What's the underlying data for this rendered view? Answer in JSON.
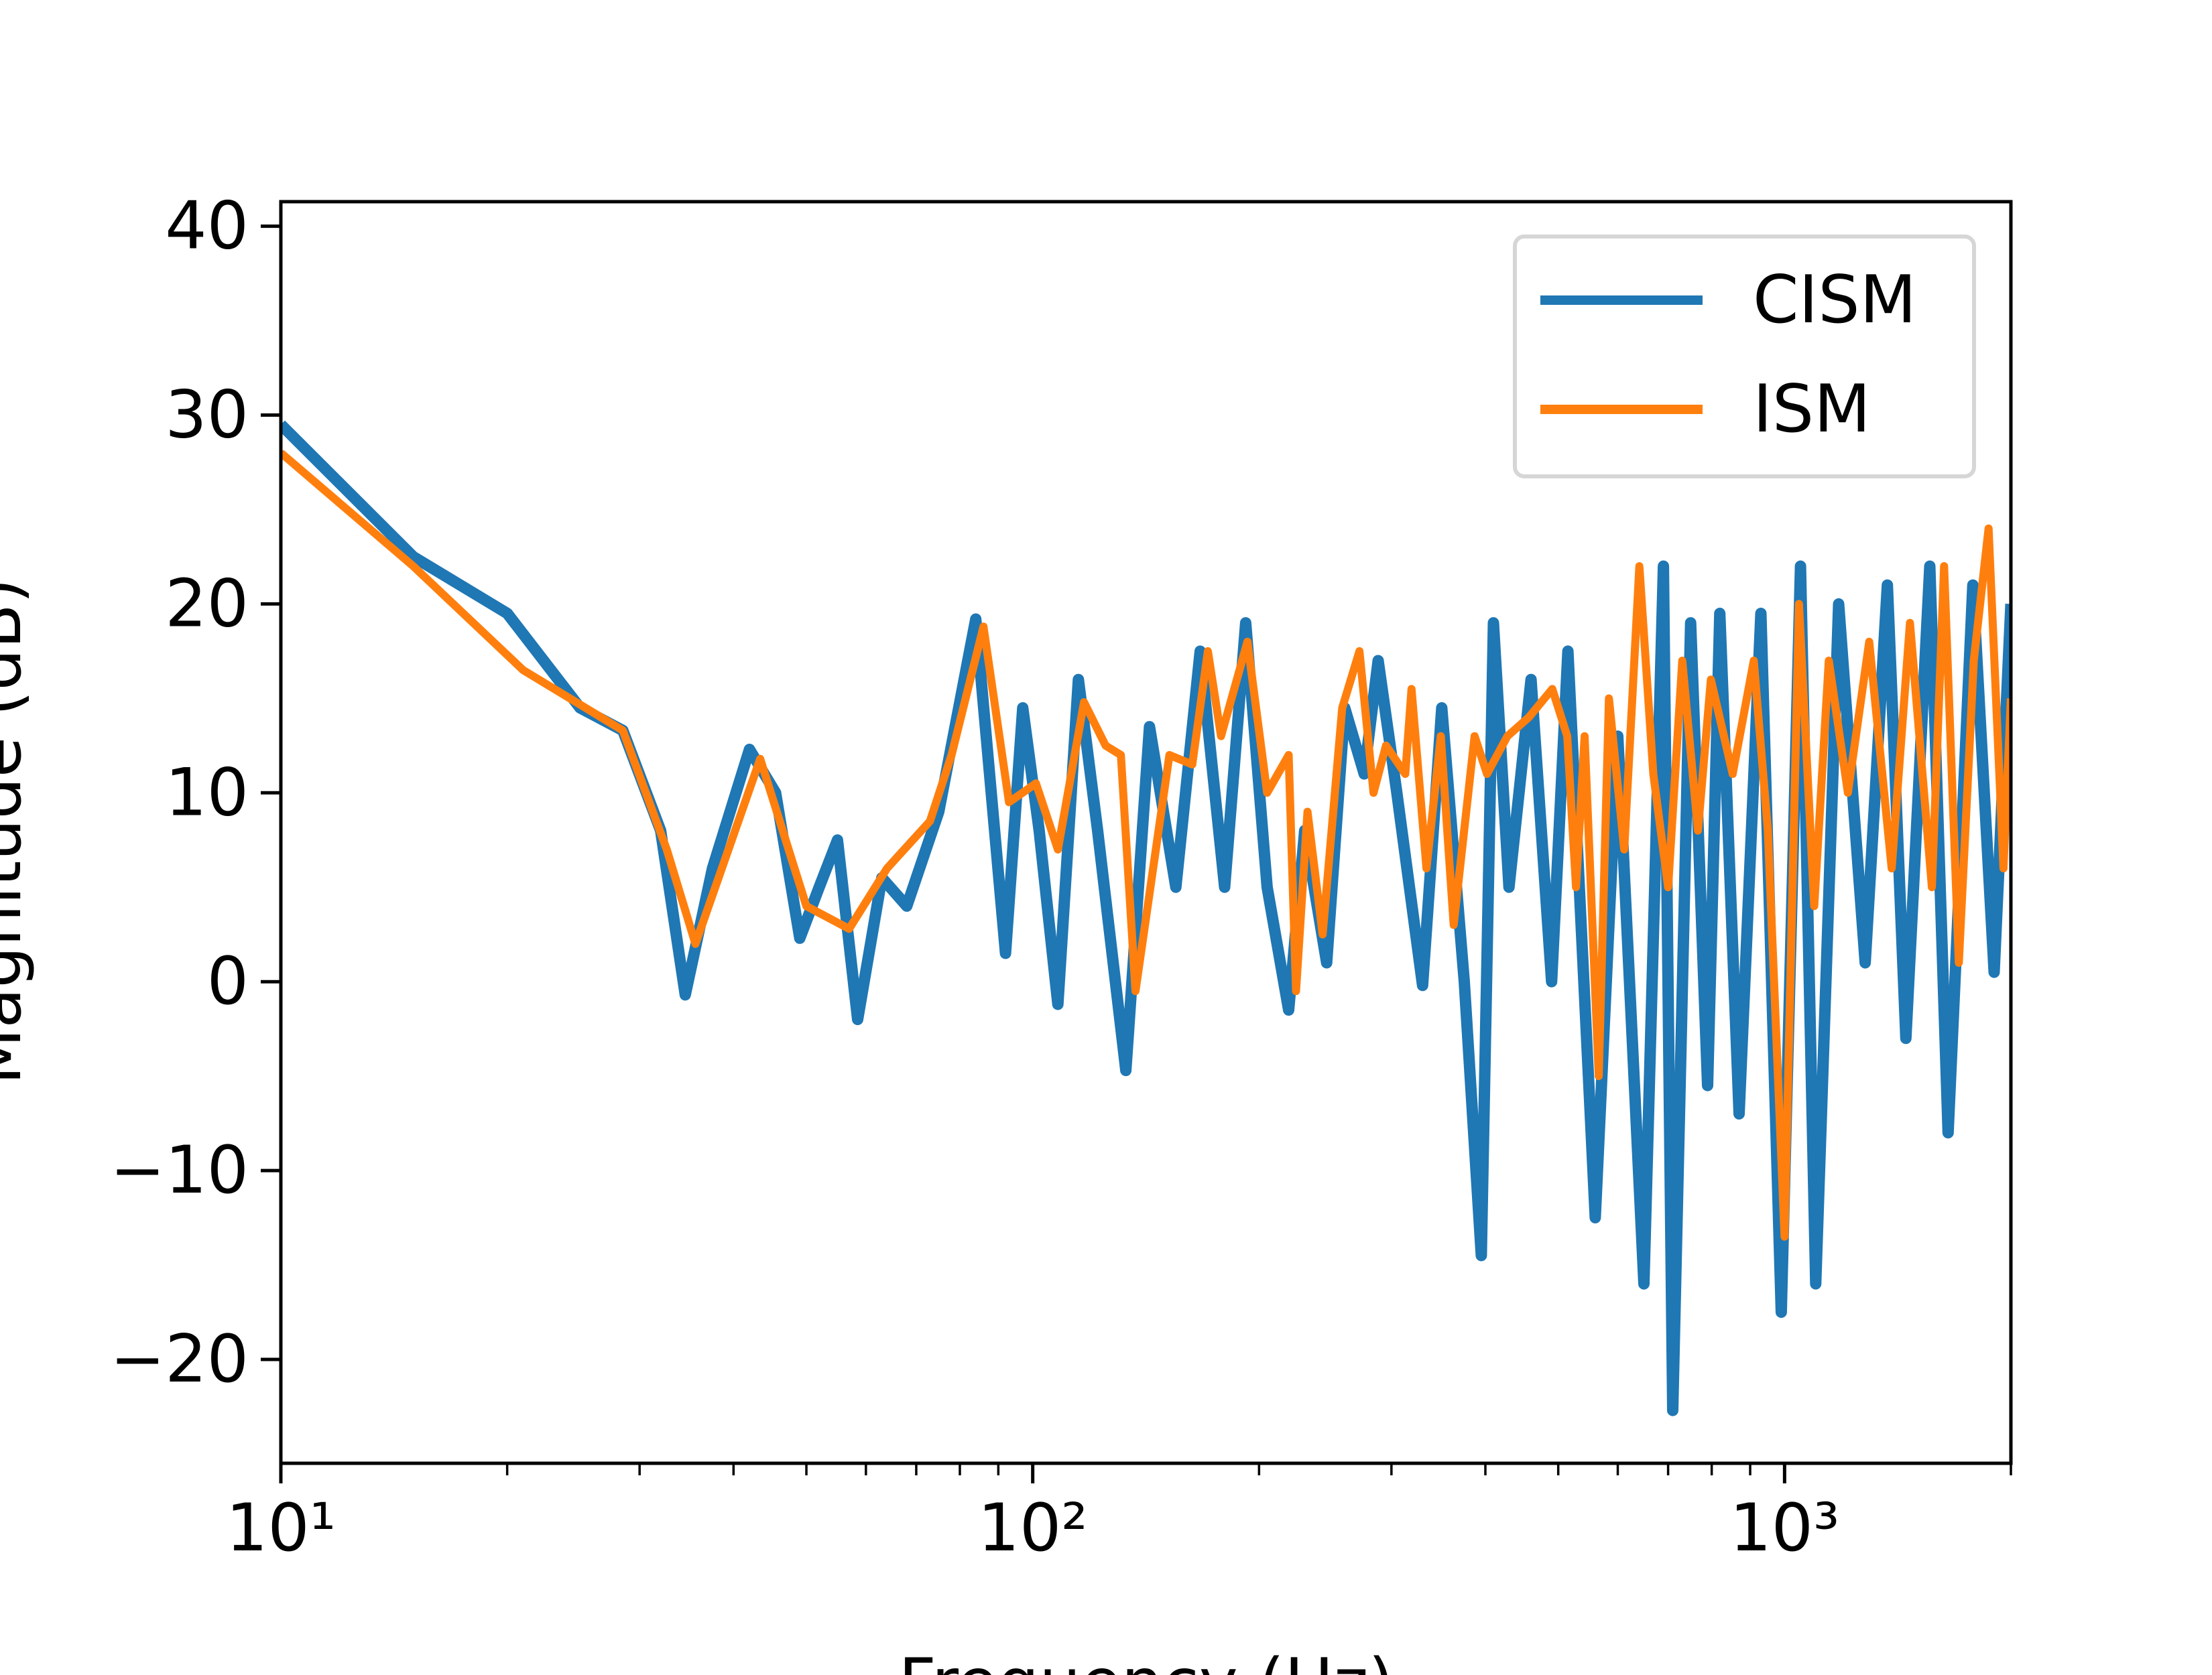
{
  "chart_data": {
    "type": "line",
    "xlabel": "Frequency (Hz)",
    "ylabel": "Magnitude (dB)",
    "xscale": "log",
    "xlim": [
      10,
      2000
    ],
    "ylim": [
      -25.5,
      41.3
    ],
    "xticks": [
      {
        "value": 10,
        "label": "10¹"
      },
      {
        "value": 100,
        "label": "10²"
      },
      {
        "value": 1000,
        "label": "10³"
      }
    ],
    "xminorticks": [
      20,
      30,
      40,
      50,
      60,
      70,
      80,
      90,
      200,
      300,
      400,
      500,
      600,
      700,
      800,
      900,
      2000
    ],
    "yticks": [
      {
        "value": -20,
        "label": "−20"
      },
      {
        "value": -10,
        "label": "−10"
      },
      0,
      10,
      20,
      30,
      40
    ],
    "legend": "upper right",
    "series": [
      {
        "name": "CISM",
        "color": "#1f77b4",
        "x": [
          10,
          15,
          20,
          25,
          28.5,
          32,
          34.5,
          37.5,
          42,
          45.5,
          49,
          52,
          55,
          58.5,
          63,
          68,
          75,
          84,
          92,
          97,
          102,
          108,
          115,
          122,
          133,
          143,
          155,
          167,
          180,
          192,
          205,
          219,
          230,
          246,
          260,
          276,
          288,
          305,
          330,
          350,
          375,
          395,
          410,
          430,
          460,
          490,
          515,
          560,
          600,
          650,
          690,
          710,
          750,
          790,
          820,
          870,
          930,
          990,
          1050,
          1100,
          1180,
          1280,
          1370,
          1450,
          1560,
          1650,
          1780,
          1900,
          2000
        ],
        "values": [
          29.5,
          22.5,
          19.5,
          14.5,
          13.3,
          8,
          -0.7,
          6,
          12.3,
          10,
          2.3,
          5,
          7.5,
          -2,
          5.5,
          4,
          9,
          19.2,
          1.5,
          14.5,
          8,
          -1.2,
          16,
          8,
          -4.7,
          13.5,
          5,
          17.5,
          5,
          19,
          5,
          -1.5,
          8,
          1,
          14.5,
          11,
          17,
          10,
          -0.2,
          14.5,
          0,
          -14.5,
          19,
          5,
          16,
          0,
          17.5,
          -12.5,
          13,
          -16,
          22,
          -22.7,
          19,
          -5.5,
          19.5,
          -7,
          19.5,
          -17.5,
          22,
          -16,
          20,
          1,
          21,
          -3,
          22,
          -8,
          21,
          0.5,
          20
        ]
      },
      {
        "name": "ISM",
        "color": "#ff7f0e",
        "x": [
          10,
          15,
          21,
          28.5,
          32.6,
          35.6,
          43.4,
          50,
          57,
          64,
          73,
          78,
          86,
          93,
          101,
          108,
          117,
          125,
          131,
          137,
          152,
          163,
          171,
          178,
          193,
          205,
          219,
          224,
          232,
          243,
          258,
          272,
          284,
          295,
          313,
          319,
          334,
          349,
          363,
          387,
          402,
          428,
          457,
          491,
          514,
          528,
          542,
          566,
          584,
          612,
          641,
          669,
          700,
          731,
          767,
          798,
          853,
          910,
          950,
          1000,
          1045,
          1095,
          1145,
          1214,
          1296,
          1388,
          1468,
          1570,
          1630,
          1705,
          1785,
          1868,
          1955,
          2000
        ],
        "values": [
          28,
          22,
          16.5,
          13.3,
          7,
          2,
          11.8,
          4,
          2.8,
          6,
          8.5,
          12,
          18.8,
          9.5,
          10.5,
          7,
          14.8,
          12.5,
          12,
          -0.5,
          12,
          11.5,
          17.5,
          13,
          18,
          10,
          12,
          -0.5,
          9,
          2.5,
          14.5,
          17.5,
          10,
          12.5,
          11,
          15.5,
          6,
          13,
          3,
          13,
          11,
          13,
          14,
          15.5,
          13,
          5,
          13,
          -5,
          15,
          7,
          22,
          11,
          5,
          17,
          8,
          16,
          11,
          17,
          8,
          -13.5,
          20,
          4,
          17,
          10,
          18,
          6,
          19,
          5,
          22,
          1,
          17,
          24,
          6,
          15
        ]
      }
    ]
  }
}
